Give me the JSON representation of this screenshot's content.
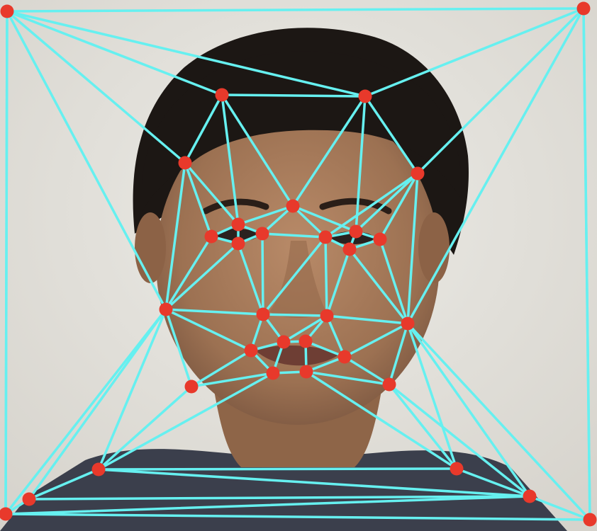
{
  "figure": {
    "description_free": true,
    "edge_color": "#66f0f0",
    "point_color": "#e8392b",
    "background_color": "#e6e4df",
    "shirt_color": "#3b3f4c",
    "hair_color": "#1c1714",
    "skin_color": "#a47a5a"
  }
}
